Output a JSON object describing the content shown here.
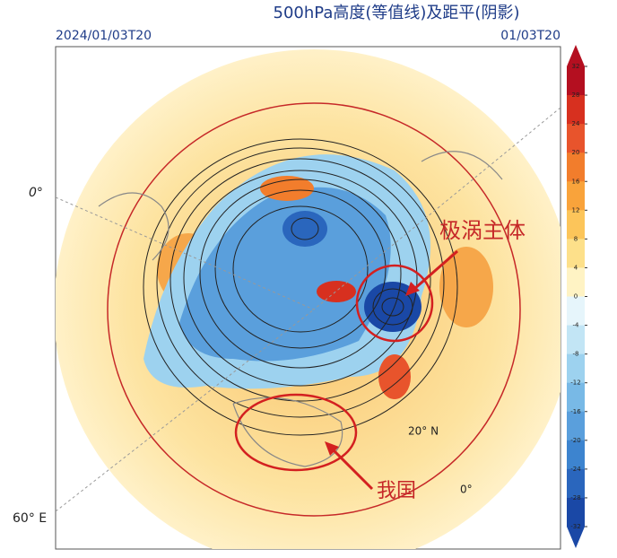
{
  "header": {
    "title": "500hPa高度(等值线)及距平(阴影)",
    "left_time": "2024/01/03T20",
    "right_time": "01/03T20"
  },
  "annotations": {
    "polar_vortex": "极涡主体",
    "china": "我国"
  },
  "coordinate_labels": {
    "left_lon": "0°",
    "bottom_lon": "60° E",
    "lat": "20° N",
    "right_lon": "0°"
  },
  "colorbar": {
    "ticks": [
      32,
      28,
      24,
      20,
      16,
      12,
      8,
      4,
      0,
      -4,
      -8,
      -12,
      -16,
      -20,
      -24,
      -28,
      -32
    ],
    "colors": [
      "#b40f20",
      "#d7301f",
      "#e8542c",
      "#f27d2c",
      "#f9a33b",
      "#fcc55a",
      "#fde08a",
      "#fff3c4",
      "#e6f5fb",
      "#c2e5f5",
      "#9dd2ef",
      "#78b9e6",
      "#5a9fdc",
      "#3d84cf",
      "#2a66bd",
      "#1a48a6"
    ]
  }
}
